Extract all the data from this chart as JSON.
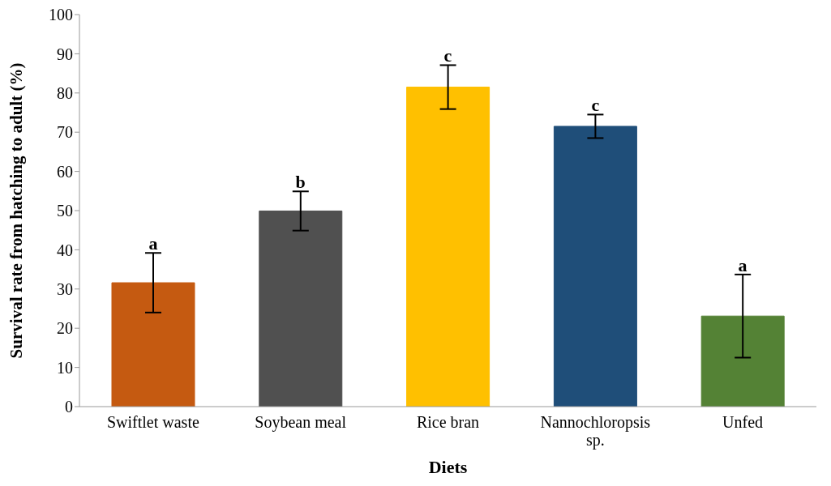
{
  "chart_data": {
    "type": "bar",
    "xlabel": "Diets",
    "ylabel": "Survival rate from hatching to adult (%)",
    "categories": [
      "Swiftlet waste",
      "Soybean meal",
      "Rice bran",
      "Nannochloropsis sp.",
      "Unfed"
    ],
    "values": [
      31.6,
      49.9,
      81.5,
      71.5,
      23.1
    ],
    "errors": [
      7.6,
      5.0,
      5.6,
      3.0,
      10.6
    ],
    "colors": [
      "#c55a11",
      "#505050",
      "#ffc000",
      "#1f4e79",
      "#548235"
    ],
    "ylim": [
      0,
      100
    ],
    "yticks": [
      0,
      10,
      20,
      30,
      40,
      50,
      60,
      70,
      80,
      90,
      100
    ],
    "annotations": [
      {
        "text": "a",
        "x": "Swiftlet waste",
        "y": 39.2
      },
      {
        "text": "b",
        "x": "Soybean meal",
        "y": 54.9
      },
      {
        "text": "c",
        "x": "Rice bran",
        "y": 87.1
      },
      {
        "text": "c",
        "x": "Nannochloropsis sp.",
        "y": 74.5
      },
      {
        "text": "a",
        "x": "Unfed",
        "y": 33.7
      }
    ]
  }
}
